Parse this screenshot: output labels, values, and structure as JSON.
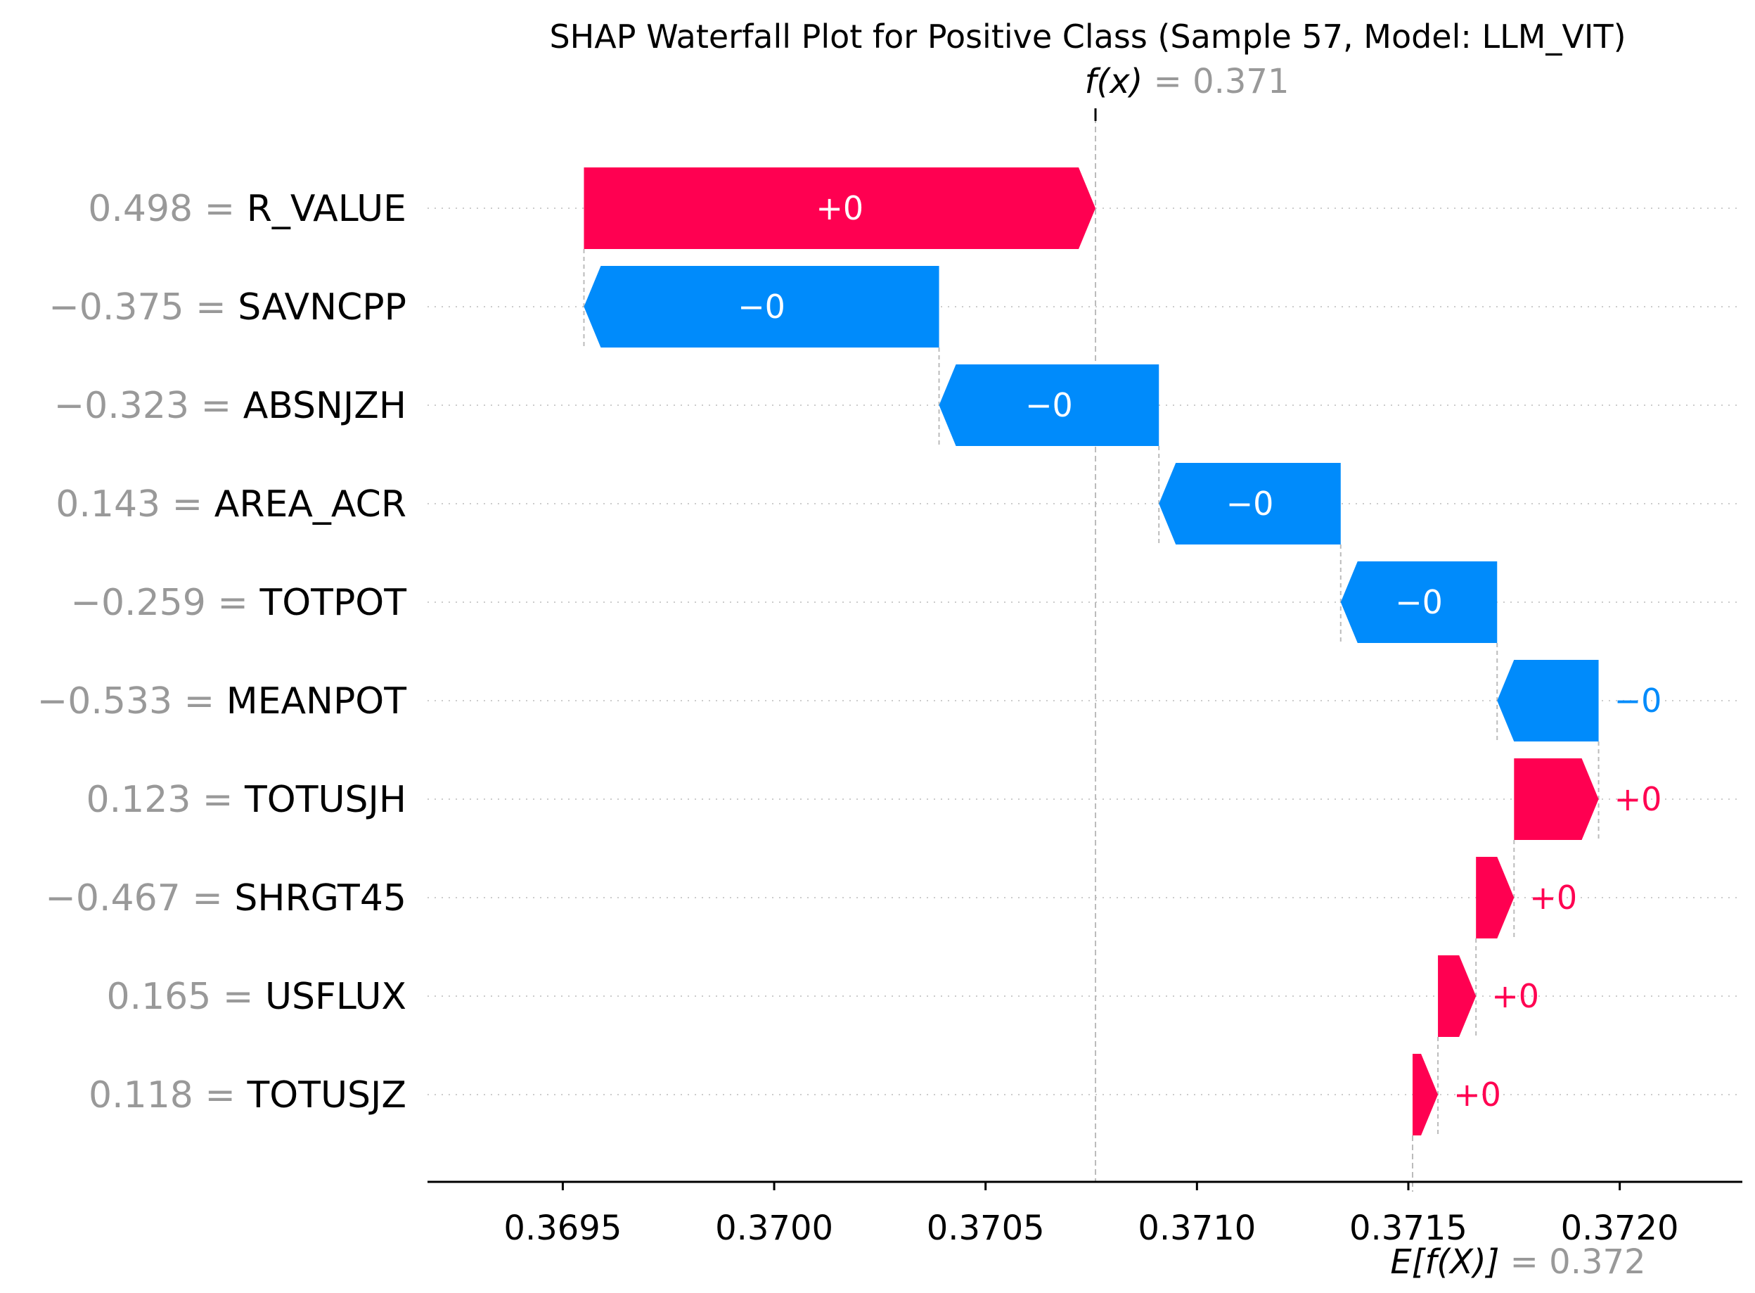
{
  "colors": {
    "positive": "#ff0051",
    "negative": "#008bfb",
    "axis": "#000000",
    "grid": "#cccccc",
    "muted_text": "#999999"
  },
  "chart_data": {
    "type": "waterfall",
    "title": "SHAP Waterfall Plot for Positive Class (Sample 57, Model: LLM_VIT)",
    "fx": {
      "symbol": "f(x)",
      "equals": "=",
      "value": "0.371",
      "numeric": 0.37076
    },
    "efx": {
      "symbol": "E[f(X)]",
      "equals": "=",
      "value": "0.372",
      "numeric": 0.37151
    },
    "xlim": [
      0.36918,
      0.37229
    ],
    "xticks": [
      {
        "value": 0.3695,
        "label": "0.3695"
      },
      {
        "value": 0.37,
        "label": "0.3700"
      },
      {
        "value": 0.3705,
        "label": "0.3705"
      },
      {
        "value": 0.371,
        "label": "0.3710"
      },
      {
        "value": 0.3715,
        "label": "0.3715"
      },
      {
        "value": 0.372,
        "label": "0.3720"
      }
    ],
    "features": [
      {
        "value_text": "0.498",
        "name": "R_VALUE",
        "start": 0.36955,
        "end": 0.37076,
        "label": "+0"
      },
      {
        "value_text": "−0.375",
        "name": "SAVNCPP",
        "start": 0.37039,
        "end": 0.36955,
        "label": "−0"
      },
      {
        "value_text": "−0.323",
        "name": "ABSNJZH",
        "start": 0.37091,
        "end": 0.37039,
        "label": "−0"
      },
      {
        "value_text": "0.143",
        "name": "AREA_ACR",
        "start": 0.37134,
        "end": 0.37091,
        "label": "−0"
      },
      {
        "value_text": "−0.259",
        "name": "TOTPOT",
        "start": 0.37171,
        "end": 0.37134,
        "label": "−0"
      },
      {
        "value_text": "−0.533",
        "name": "MEANPOT",
        "start": 0.37195,
        "end": 0.37171,
        "label": "−0"
      },
      {
        "value_text": "0.123",
        "name": "TOTUSJH",
        "start": 0.37175,
        "end": 0.37195,
        "label": "+0"
      },
      {
        "value_text": "−0.467",
        "name": "SHRGT45",
        "start": 0.37166,
        "end": 0.37175,
        "label": "+0"
      },
      {
        "value_text": "0.165",
        "name": "USFLUX",
        "start": 0.37157,
        "end": 0.37166,
        "label": "+0"
      },
      {
        "value_text": "0.118",
        "name": "TOTUSJZ",
        "start": 0.37151,
        "end": 0.37157,
        "label": "+0"
      }
    ]
  }
}
